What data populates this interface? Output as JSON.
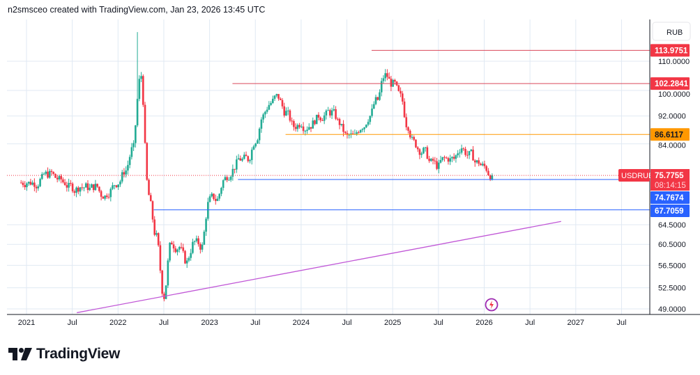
{
  "header": {
    "attribution": "n2smsceo created with TradingView.com, Jan 23, 2026 13:45 UTC"
  },
  "footer": {
    "brand": "TradingView"
  },
  "colors": {
    "up": "#22ab94",
    "down": "#f23645",
    "grid": "#e0e9f3",
    "level_red": "#f23645",
    "level_orange": "#ff9800",
    "level_blue": "#2962ff",
    "trendline": "#c056d6"
  },
  "chart_data": {
    "type": "candlestick",
    "symbol": "USDRUB",
    "currency": "RUB",
    "scale": "log",
    "ylim": [
      48,
      125
    ],
    "y_ticks": [
      "110.0000",
      "100.0000",
      "92.0000",
      "84.0000",
      "64.5000",
      "60.5000",
      "56.5000",
      "52.5000",
      "49.0000"
    ],
    "y_tick_values": [
      110,
      100,
      92,
      84,
      64.5,
      60.5,
      56.5,
      52.5,
      49
    ],
    "x_ticks": [
      {
        "label": "2021",
        "t": 2021.0
      },
      {
        "label": "Jul",
        "t": 2021.5
      },
      {
        "label": "2022",
        "t": 2022.0
      },
      {
        "label": "Jul",
        "t": 2022.5
      },
      {
        "label": "2023",
        "t": 2023.0
      },
      {
        "label": "Jul",
        "t": 2023.5
      },
      {
        "label": "2024",
        "t": 2024.0
      },
      {
        "label": "Jul",
        "t": 2024.5
      },
      {
        "label": "2025",
        "t": 2025.0
      },
      {
        "label": "Jul",
        "t": 2025.5
      },
      {
        "label": "2026",
        "t": 2026.0
      },
      {
        "label": "Jul",
        "t": 2026.5
      },
      {
        "label": "2027",
        "t": 2027.0
      },
      {
        "label": "Jul",
        "t": 2027.5
      }
    ],
    "start": 2020.92,
    "closes": [
      74,
      74,
      75,
      76,
      75,
      74,
      73,
      73,
      73,
      73,
      71,
      72,
      74,
      77,
      83,
      105,
      71,
      62,
      51,
      61,
      60,
      57,
      61,
      60,
      70,
      70,
      75,
      77,
      80,
      80,
      85,
      92,
      96,
      98,
      93,
      89,
      90,
      89,
      91,
      92,
      93,
      90,
      86,
      86,
      89,
      92,
      97,
      105,
      102,
      98,
      89,
      84,
      82,
      79,
      78,
      80,
      80,
      83,
      81,
      79,
      78,
      75.78
    ],
    "spike_high": 121,
    "current": {
      "price": "75.7755",
      "countdown": "08:14:15"
    },
    "levels": [
      {
        "value": 113.9751,
        "label": "113.9751",
        "from": 2024.77,
        "color": "red"
      },
      {
        "value": 102.2841,
        "label": "102.2841",
        "from": 2023.25,
        "color": "red"
      },
      {
        "value": 86.6117,
        "label": "86.6117",
        "from": 2023.83,
        "color": "orange"
      },
      {
        "value": 74.7674,
        "label": "74.7674",
        "from": 2023.31,
        "color": "blue"
      },
      {
        "value": 67.7059,
        "label": "67.7059",
        "from": 2022.39,
        "color": "blue"
      }
    ],
    "trendline": {
      "from": {
        "t": 2021.55,
        "v": 48.4
      },
      "to": {
        "t": 2026.84,
        "v": 65.2
      }
    }
  }
}
